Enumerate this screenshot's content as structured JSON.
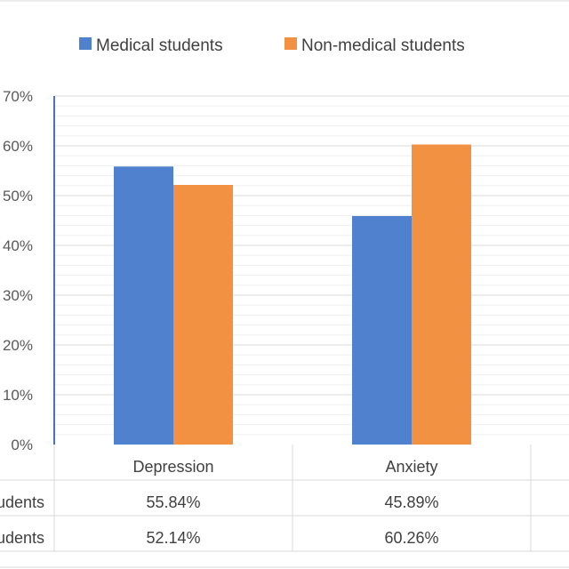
{
  "legend": [
    {
      "label": "Medical students",
      "color": "#4f81cf"
    },
    {
      "label": "Non-medical students",
      "color": "#f29141"
    }
  ],
  "y_ticks": [
    "0%",
    "10%",
    "20%",
    "30%",
    "40%",
    "50%",
    "60%",
    "70%"
  ],
  "table": {
    "row_labels": [
      "Medical students",
      "Non-medical students"
    ],
    "rows": [
      [
        "55.84%",
        "45.89%"
      ],
      [
        "52.14%",
        "60.26%"
      ]
    ]
  },
  "chart_data": {
    "type": "bar",
    "categories": [
      "Depression",
      "Anxiety"
    ],
    "series": [
      {
        "name": "Medical students",
        "values": [
          55.84,
          45.89
        ],
        "color": "#4f81cf"
      },
      {
        "name": "Non-medical students",
        "values": [
          52.14,
          60.26
        ],
        "color": "#f29141"
      }
    ],
    "ylim": [
      0,
      70
    ],
    "y_unit": "%",
    "grid": true,
    "legend_position": "top",
    "data_table": true
  }
}
